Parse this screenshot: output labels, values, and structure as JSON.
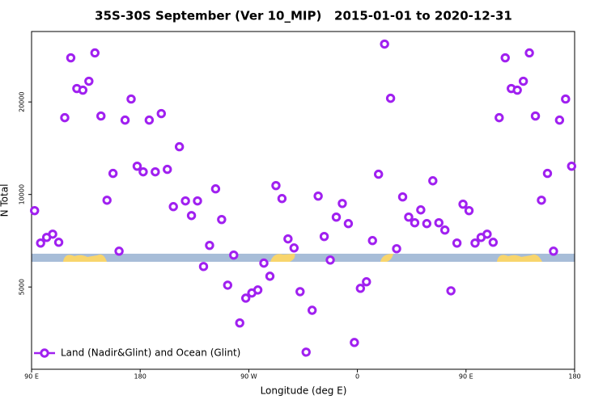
{
  "chart_data": {
    "type": "scatter",
    "title": "35S-30S September (Ver 10_MIP)   2015-01-01 to 2020-12-31",
    "xlabel": "Longitude (deg E)",
    "ylabel": "N Total",
    "xlim": [
      90,
      540
    ],
    "xticks": [
      {
        "value": 90,
        "label": "90 E"
      },
      {
        "value": 180,
        "label": "180"
      },
      {
        "value": 270,
        "label": "90 W"
      },
      {
        "value": 360,
        "label": "0"
      },
      {
        "value": 450,
        "label": "90 E"
      },
      {
        "value": 540,
        "label": "180"
      }
    ],
    "ylim": [
      2700,
      33900
    ],
    "yticks": [
      5000,
      10000,
      20000
    ],
    "ylog": true,
    "legend": "bottom-left",
    "series": [
      {
        "name": "Land (Nadir&Glint) and Ocean (Glint)",
        "color": "#a020f0",
        "x": [
          92.5,
          97.5,
          102.5,
          107.5,
          112.5,
          117.5,
          122.5,
          127.5,
          132.5,
          137.5,
          142.5,
          147.5,
          152.5,
          157.5,
          162.5,
          167.5,
          172.5,
          177.5,
          182.5,
          187.5,
          192.5,
          197.5,
          202.5,
          207.5,
          212.5,
          217.5,
          222.5,
          227.5,
          232.5,
          237.5,
          242.5,
          247.5,
          252.5,
          257.5,
          262.5,
          267.5,
          272.5,
          277.5,
          282.5,
          287.5,
          292.5,
          297.5,
          302.5,
          307.5,
          312.5,
          317.5,
          322.5,
          327.5,
          332.5,
          337.5,
          342.5,
          347.5,
          352.5,
          357.5,
          362.5,
          367.5,
          372.5,
          377.5,
          382.5,
          387.5,
          392.5,
          397.5,
          402.5,
          407.5,
          412.5,
          417.5,
          422.5,
          427.5,
          432.5,
          437.5,
          442.5,
          447.5,
          452.5,
          457.5,
          462.5,
          467.5,
          472.5,
          477.5,
          482.5,
          487.5,
          492.5,
          497.5,
          502.5,
          507.5,
          512.5,
          517.5,
          522.5,
          527.5,
          532.5,
          537.5
        ],
        "values": [
          8860,
          6950,
          7250,
          7430,
          6990,
          17780,
          27840,
          22120,
          21850,
          23360,
          28880,
          18000,
          9580,
          11710,
          6540,
          17460,
          20440,
          12360,
          11850,
          17460,
          11850,
          18330,
          12070,
          9130,
          14300,
          9530,
          8540,
          9530,
          5830,
          6830,
          10430,
          8290,
          5070,
          6350,
          3820,
          4600,
          4780,
          4890,
          5980,
          5420,
          10690,
          9700,
          7170,
          6700,
          4830,
          3070,
          4200,
          9880,
          7300,
          6120,
          8440,
          9350,
          8040,
          3300,
          4950,
          5200,
          7080,
          11640,
          30860,
          20560,
          6660,
          9820,
          8440,
          8090,
          8910,
          8040,
          11080,
          8090,
          7660,
          4860,
          6950,
          9300,
          8860,
          6950,
          7250,
          7430,
          6990,
          17780,
          27840,
          22120,
          21850,
          23360,
          28880,
          18000,
          9580,
          11710,
          6540,
          17460,
          20440,
          12360
        ]
      }
    ]
  }
}
